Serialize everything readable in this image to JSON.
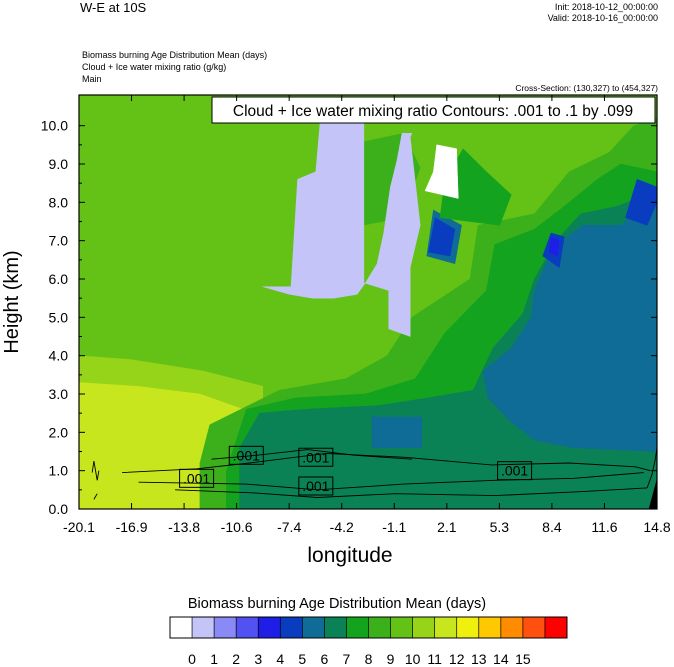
{
  "header": {
    "title": "W-E at 10S",
    "init": "Init: 2018-10-12_00:00:00",
    "valid": "Valid: 2018-10-16_00:00:00",
    "fields": [
      "Biomass burning Age Distribution Mean   (days)",
      "Cloud + Ice water mixing ratio   (g/kg)",
      "Main"
    ],
    "cross_section": "Cross-Section: (130,327) to (454,327)"
  },
  "chart_data": {
    "type": "heatmap",
    "title": "W-E at 10S",
    "xlabel": "longitude",
    "ylabel": "Height (km)",
    "xlim": [
      -20.1,
      14.8
    ],
    "ylim": [
      0.0,
      10.8
    ],
    "x_ticks": [
      "-20.1",
      "-16.9",
      "-13.8",
      "-10.6",
      "-7.4",
      "-4.2",
      "-1.1",
      "2.1",
      "5.3",
      "8.4",
      "11.6",
      "14.8"
    ],
    "y_ticks": [
      "0.0",
      "1.0",
      "2.0",
      "3.0",
      "4.0",
      "5.0",
      "6.0",
      "7.0",
      "8.0",
      "9.0",
      "10.0"
    ],
    "contour_legend": "Cloud + Ice water mixing ratio Contours: .001 to .1 by .099",
    "contour_labels": [
      {
        "text": ".001",
        "lon": -13.0,
        "h": 0.8
      },
      {
        "text": ".001",
        "lon": -10.0,
        "h": 1.4
      },
      {
        "text": ".001",
        "lon": -5.8,
        "h": 1.35
      },
      {
        "text": ".001",
        "lon": -5.8,
        "h": 0.6
      },
      {
        "text": ".001",
        "lon": 6.2,
        "h": 1.0
      }
    ],
    "colorbar": {
      "title": "Biomass burning Age Distribution Mean  (days)",
      "labels": [
        "0",
        "1",
        "2",
        "3",
        "4",
        "5",
        "6",
        "7",
        "8",
        "9",
        "10",
        "11",
        "12",
        "13",
        "14",
        "15"
      ],
      "colors": [
        "#ffffff",
        "#c4c4f8",
        "#8a8af5",
        "#5252f2",
        "#1e1ee6",
        "#0a3cc0",
        "#0e6c96",
        "#0a8255",
        "#13a31e",
        "#3cb01a",
        "#64c216",
        "#96d41a",
        "#c8e61e",
        "#f0f00f",
        "#ffc800",
        "#ff8c00",
        "#ff5010",
        "#ff0000"
      ]
    },
    "regions": [
      {
        "level": 10,
        "poly": [
          [
            -20.1,
            0.0
          ],
          [
            14.8,
            0.0
          ],
          [
            14.8,
            10.8
          ],
          [
            -20.1,
            10.8
          ]
        ]
      },
      {
        "level": 11,
        "poly": [
          [
            -20.1,
            0.0
          ],
          [
            -9.0,
            0.0
          ],
          [
            -9.0,
            3.2
          ],
          [
            -12.6,
            3.6
          ],
          [
            -17.0,
            3.9
          ],
          [
            -20.1,
            4.0
          ]
        ]
      },
      {
        "level": 12,
        "poly": [
          [
            -20.1,
            0.0
          ],
          [
            -10.2,
            0.0
          ],
          [
            -10.2,
            2.6
          ],
          [
            -12.8,
            3.0
          ],
          [
            -16.6,
            3.2
          ],
          [
            -20.1,
            3.3
          ]
        ]
      },
      {
        "level": 9,
        "poly": [
          [
            -12.8,
            0.0
          ],
          [
            14.8,
            0.0
          ],
          [
            14.8,
            10.2
          ],
          [
            13.4,
            10.0
          ],
          [
            11.9,
            9.3
          ],
          [
            9.5,
            8.8
          ],
          [
            7.4,
            7.7
          ],
          [
            4.0,
            7.4
          ],
          [
            3.5,
            6.0
          ],
          [
            0.0,
            5.0
          ],
          [
            -1.5,
            4.0
          ],
          [
            -4.0,
            3.4
          ],
          [
            -8.0,
            3.1
          ],
          [
            -12.2,
            2.2
          ],
          [
            -12.8,
            1.2
          ]
        ]
      },
      {
        "level": 8,
        "poly": [
          [
            -11.2,
            0.0
          ],
          [
            14.8,
            0.0
          ],
          [
            14.8,
            8.8
          ],
          [
            12.6,
            9.0
          ],
          [
            11.2,
            8.6
          ],
          [
            9.2,
            7.9
          ],
          [
            7.4,
            7.3
          ],
          [
            5.0,
            6.9
          ],
          [
            4.5,
            5.7
          ],
          [
            2.0,
            4.6
          ],
          [
            0.2,
            3.4
          ],
          [
            -2.8,
            3.0
          ],
          [
            -7.0,
            2.9
          ],
          [
            -10.0,
            2.6
          ],
          [
            -11.2,
            1.0
          ]
        ]
      },
      {
        "level": 7,
        "poly": [
          [
            -10.4,
            0.0
          ],
          [
            14.8,
            0.0
          ],
          [
            14.8,
            8.3
          ],
          [
            12.4,
            7.9
          ],
          [
            10.2,
            7.7
          ],
          [
            8.7,
            7.0
          ],
          [
            7.4,
            6.0
          ],
          [
            6.7,
            5.1
          ],
          [
            4.9,
            4.2
          ],
          [
            3.7,
            3.1
          ],
          [
            1.0,
            2.9
          ],
          [
            -2.0,
            2.7
          ],
          [
            -6.5,
            2.6
          ],
          [
            -9.2,
            2.5
          ],
          [
            -10.4,
            1.6
          ]
        ]
      },
      {
        "level": 6,
        "poly": [
          [
            14.8,
            1.5
          ],
          [
            9.7,
            1.6
          ],
          [
            7.4,
            1.8
          ],
          [
            5.9,
            2.3
          ],
          [
            4.6,
            2.9
          ],
          [
            4.3,
            3.6
          ],
          [
            6.0,
            4.2
          ],
          [
            7.2,
            5.0
          ],
          [
            7.4,
            5.7
          ],
          [
            8.5,
            6.8
          ],
          [
            10.3,
            7.4
          ],
          [
            12.6,
            7.4
          ],
          [
            14.8,
            8.2
          ]
        ]
      },
      {
        "level": 6,
        "poly": [
          [
            -2.4,
            1.6
          ],
          [
            0.6,
            1.6
          ],
          [
            0.6,
            2.4
          ],
          [
            -2.4,
            2.4
          ]
        ]
      },
      {
        "level": 5,
        "poly": [
          [
            7.9,
            6.6
          ],
          [
            8.9,
            6.3
          ],
          [
            9.2,
            7.1
          ],
          [
            8.4,
            7.2
          ]
        ]
      },
      {
        "level": 5,
        "poly": [
          [
            12.9,
            7.6
          ],
          [
            14.2,
            7.4
          ],
          [
            14.8,
            8.0
          ],
          [
            14.8,
            8.4
          ],
          [
            13.6,
            8.6
          ]
        ]
      },
      {
        "level": 4,
        "poly": [
          [
            8.3,
            6.7
          ],
          [
            8.8,
            6.6
          ],
          [
            8.9,
            7.0
          ],
          [
            8.4,
            7.1
          ]
        ]
      },
      {
        "level": 6,
        "poly": [
          [
            0.9,
            6.6
          ],
          [
            2.6,
            6.4
          ],
          [
            3.0,
            7.4
          ],
          [
            1.3,
            7.8
          ]
        ]
      },
      {
        "level": 5,
        "poly": [
          [
            1.0,
            6.7
          ],
          [
            2.3,
            6.6
          ],
          [
            2.6,
            7.3
          ],
          [
            1.4,
            7.6
          ]
        ]
      },
      {
        "level": 8,
        "poly": [
          [
            1.7,
            7.6
          ],
          [
            5.3,
            7.4
          ],
          [
            6.0,
            8.2
          ],
          [
            4.5,
            8.8
          ],
          [
            3.1,
            9.4
          ],
          [
            2.0,
            8.6
          ]
        ]
      },
      {
        "level": 9,
        "poly": [
          [
            -4.2,
            7.3
          ],
          [
            -0.6,
            7.6
          ],
          [
            0.5,
            8.9
          ],
          [
            -0.5,
            9.8
          ],
          [
            -3.8,
            9.5
          ]
        ]
      },
      {
        "level": 1,
        "poly": [
          [
            -9.0,
            5.8
          ],
          [
            -7.3,
            5.8
          ],
          [
            -6.9,
            8.6
          ],
          [
            -5.8,
            8.8
          ],
          [
            -5.5,
            10.3
          ],
          [
            -4.7,
            10.5
          ],
          [
            -2.9,
            10.4
          ],
          [
            -2.9,
            5.9
          ],
          [
            -1.4,
            5.7
          ],
          [
            -1.4,
            4.7
          ],
          [
            -0.1,
            4.5
          ],
          [
            -0.1,
            6.3
          ],
          [
            0.5,
            7.4
          ],
          [
            -0.1,
            9.7
          ],
          [
            0.0,
            9.8
          ],
          [
            -0.6,
            9.8
          ],
          [
            -0.9,
            9.1
          ],
          [
            -1.3,
            8.4
          ],
          [
            -1.7,
            7.2
          ],
          [
            -2.1,
            6.4
          ],
          [
            -2.8,
            5.9
          ],
          [
            -3.3,
            5.6
          ],
          [
            -4.7,
            5.5
          ],
          [
            -6.0,
            5.5
          ],
          [
            -7.4,
            5.6
          ]
        ]
      },
      {
        "level": 0,
        "poly": [
          [
            0.8,
            8.3
          ],
          [
            2.8,
            8.1
          ],
          [
            2.7,
            9.4
          ],
          [
            1.5,
            9.5
          ],
          [
            1.3,
            8.8
          ]
        ]
      }
    ],
    "contours": [
      [
        [
          -17.5,
          0.95
        ],
        [
          -13.0,
          1.05
        ],
        [
          -9.8,
          1.2
        ],
        [
          -5.2,
          1.45
        ],
        [
          -0.4,
          1.35
        ],
        [
          4.8,
          1.15
        ],
        [
          9.5,
          1.2
        ],
        [
          13.5,
          1.1
        ],
        [
          14.4,
          1.0
        ]
      ],
      [
        [
          -16.5,
          0.7
        ],
        [
          -10.0,
          0.65
        ],
        [
          -5.7,
          0.5
        ],
        [
          -0.5,
          0.65
        ],
        [
          5.0,
          0.75
        ],
        [
          9.8,
          0.8
        ],
        [
          14.0,
          0.95
        ]
      ],
      [
        [
          -14.3,
          0.5
        ],
        [
          -9.5,
          0.42
        ],
        [
          -5.7,
          0.3
        ],
        [
          -1.0,
          0.4
        ],
        [
          5.0,
          0.35
        ],
        [
          10.0,
          0.45
        ],
        [
          14.2,
          0.55
        ]
      ],
      [
        [
          -12.1,
          1.3
        ],
        [
          -9.4,
          1.4
        ],
        [
          -6.3,
          1.55
        ],
        [
          -3.4,
          1.4
        ],
        [
          0.0,
          1.3
        ]
      ],
      [
        [
          -19.3,
          0.95
        ],
        [
          -19.2,
          1.25
        ],
        [
          -19.0,
          0.75
        ],
        [
          -18.9,
          1.0
        ]
      ],
      [
        [
          -19.2,
          0.25
        ],
        [
          -19.0,
          0.4
        ]
      ],
      [
        [
          14.2,
          0.55
        ],
        [
          14.5,
          0.9
        ],
        [
          14.7,
          1.3
        ],
        [
          14.8,
          1.6
        ]
      ]
    ],
    "missing_fill_color": "#000000",
    "missing_poly": [
      [
        14.3,
        0.0
      ],
      [
        14.8,
        0.0
      ],
      [
        14.8,
        0.8
      ]
    ]
  }
}
